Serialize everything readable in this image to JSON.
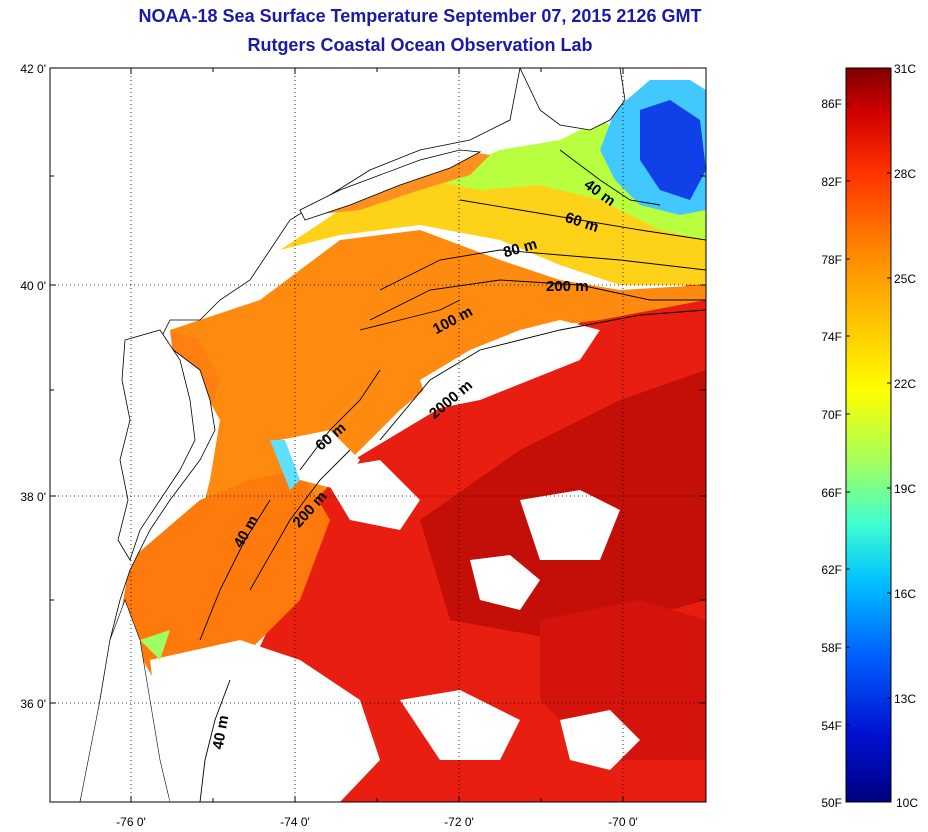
{
  "header": {
    "title": "NOAA-18 Sea Surface Temperature September 07, 2015 2126 GMT",
    "subtitle": "Rutgers Coastal Ocean Observation Lab"
  },
  "map": {
    "lat_ticks": [
      "42 0'",
      "40 0'",
      "38 0'",
      "36 0'"
    ],
    "lon_ticks": [
      "-76 0'",
      "-74 0'",
      "-72 0'",
      "-70 0'"
    ],
    "isobath_labels": [
      "40 m",
      "60 m",
      "80 m",
      "200 m",
      "100 m",
      "2000 m",
      "60 m",
      "200 m",
      "40 m",
      "40 m"
    ],
    "lat_range": [
      35,
      42
    ],
    "lon_range": [
      -77,
      -69
    ]
  },
  "colorbar": {
    "fahrenheit_labels": [
      "86F",
      "82F",
      "78F",
      "74F",
      "70F",
      "66F",
      "62F",
      "58F",
      "54F",
      "50F"
    ],
    "celsius_labels": [
      "31C",
      "28C",
      "25C",
      "22C",
      "19C",
      "16C",
      "13C",
      "10C"
    ],
    "range_c": [
      10,
      31
    ],
    "colors": [
      "#000080",
      "#0010d0",
      "#0060ff",
      "#00c0ff",
      "#40ffd0",
      "#a0ff60",
      "#ffff00",
      "#ffc000",
      "#ff8000",
      "#ff3000",
      "#d00000",
      "#800000"
    ]
  }
}
